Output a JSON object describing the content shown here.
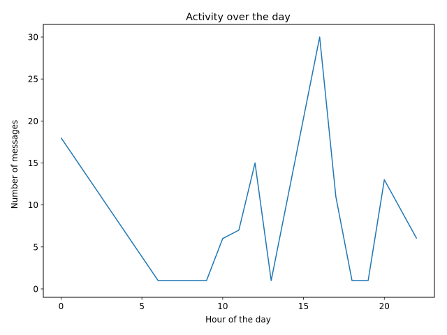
{
  "chart_data": {
    "type": "line",
    "title": "Activity over the day",
    "xlabel": "Hour of the day",
    "ylabel": "Number of messages",
    "xlim": [
      -1.1,
      23.1
    ],
    "ylim": [
      -1,
      31.5
    ],
    "xticks": [
      0,
      5,
      10,
      15,
      20
    ],
    "yticks": [
      0,
      5,
      10,
      15,
      20,
      25,
      30
    ],
    "grid": false,
    "legend": "none",
    "series": [
      {
        "color": "#1f77b4",
        "x": [
          0,
          6,
          7,
          8,
          9,
          10,
          11,
          12,
          13,
          16,
          17,
          18,
          19,
          20,
          22
        ],
        "y": [
          18,
          1,
          1,
          1,
          1,
          6,
          7,
          15,
          1,
          30,
          11,
          1,
          1,
          13,
          6
        ]
      }
    ]
  }
}
